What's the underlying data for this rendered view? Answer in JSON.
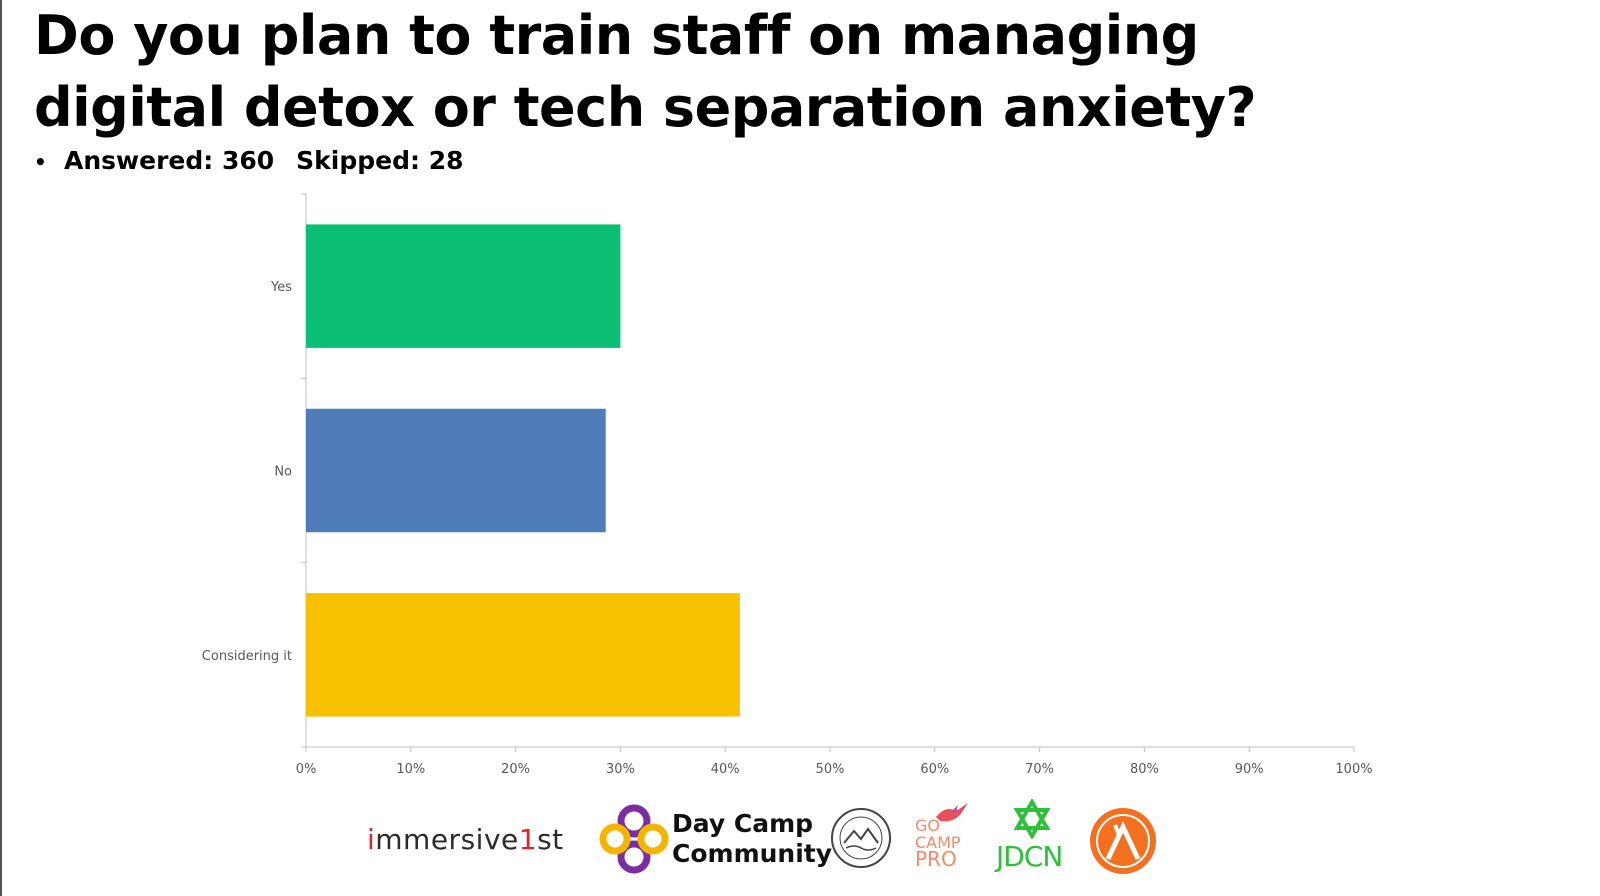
{
  "title": "Do you plan to train staff on managing digital detox or tech separation anxiety?",
  "stats": {
    "answered": "Answered: 360",
    "skipped": "Skipped: 28"
  },
  "chart_data": {
    "type": "bar",
    "orientation": "horizontal",
    "categories": [
      "Yes",
      "No",
      "Considering it"
    ],
    "values": [
      30,
      28.6,
      41.4
    ],
    "unit": "%",
    "colors": [
      "#0abf74",
      "#4f7db9",
      "#f7c000"
    ],
    "xlim": [
      0,
      100
    ],
    "xticks": [
      "0%",
      "10%",
      "20%",
      "30%",
      "40%",
      "50%",
      "60%",
      "70%",
      "80%",
      "90%",
      "100%"
    ],
    "grid": false,
    "legend": "none"
  },
  "logos": {
    "immersive_prefix": "i",
    "immersive_mid": "mmersive",
    "immersive_one": "1",
    "immersive_suffix": "st",
    "daycamp_line1": "Day Camp",
    "daycamp_line2": "Community",
    "gocamp_line1": "GO",
    "gocamp_line2": "CAMP",
    "gocamp_line3": "PRO",
    "jdcn": "JDCN"
  }
}
